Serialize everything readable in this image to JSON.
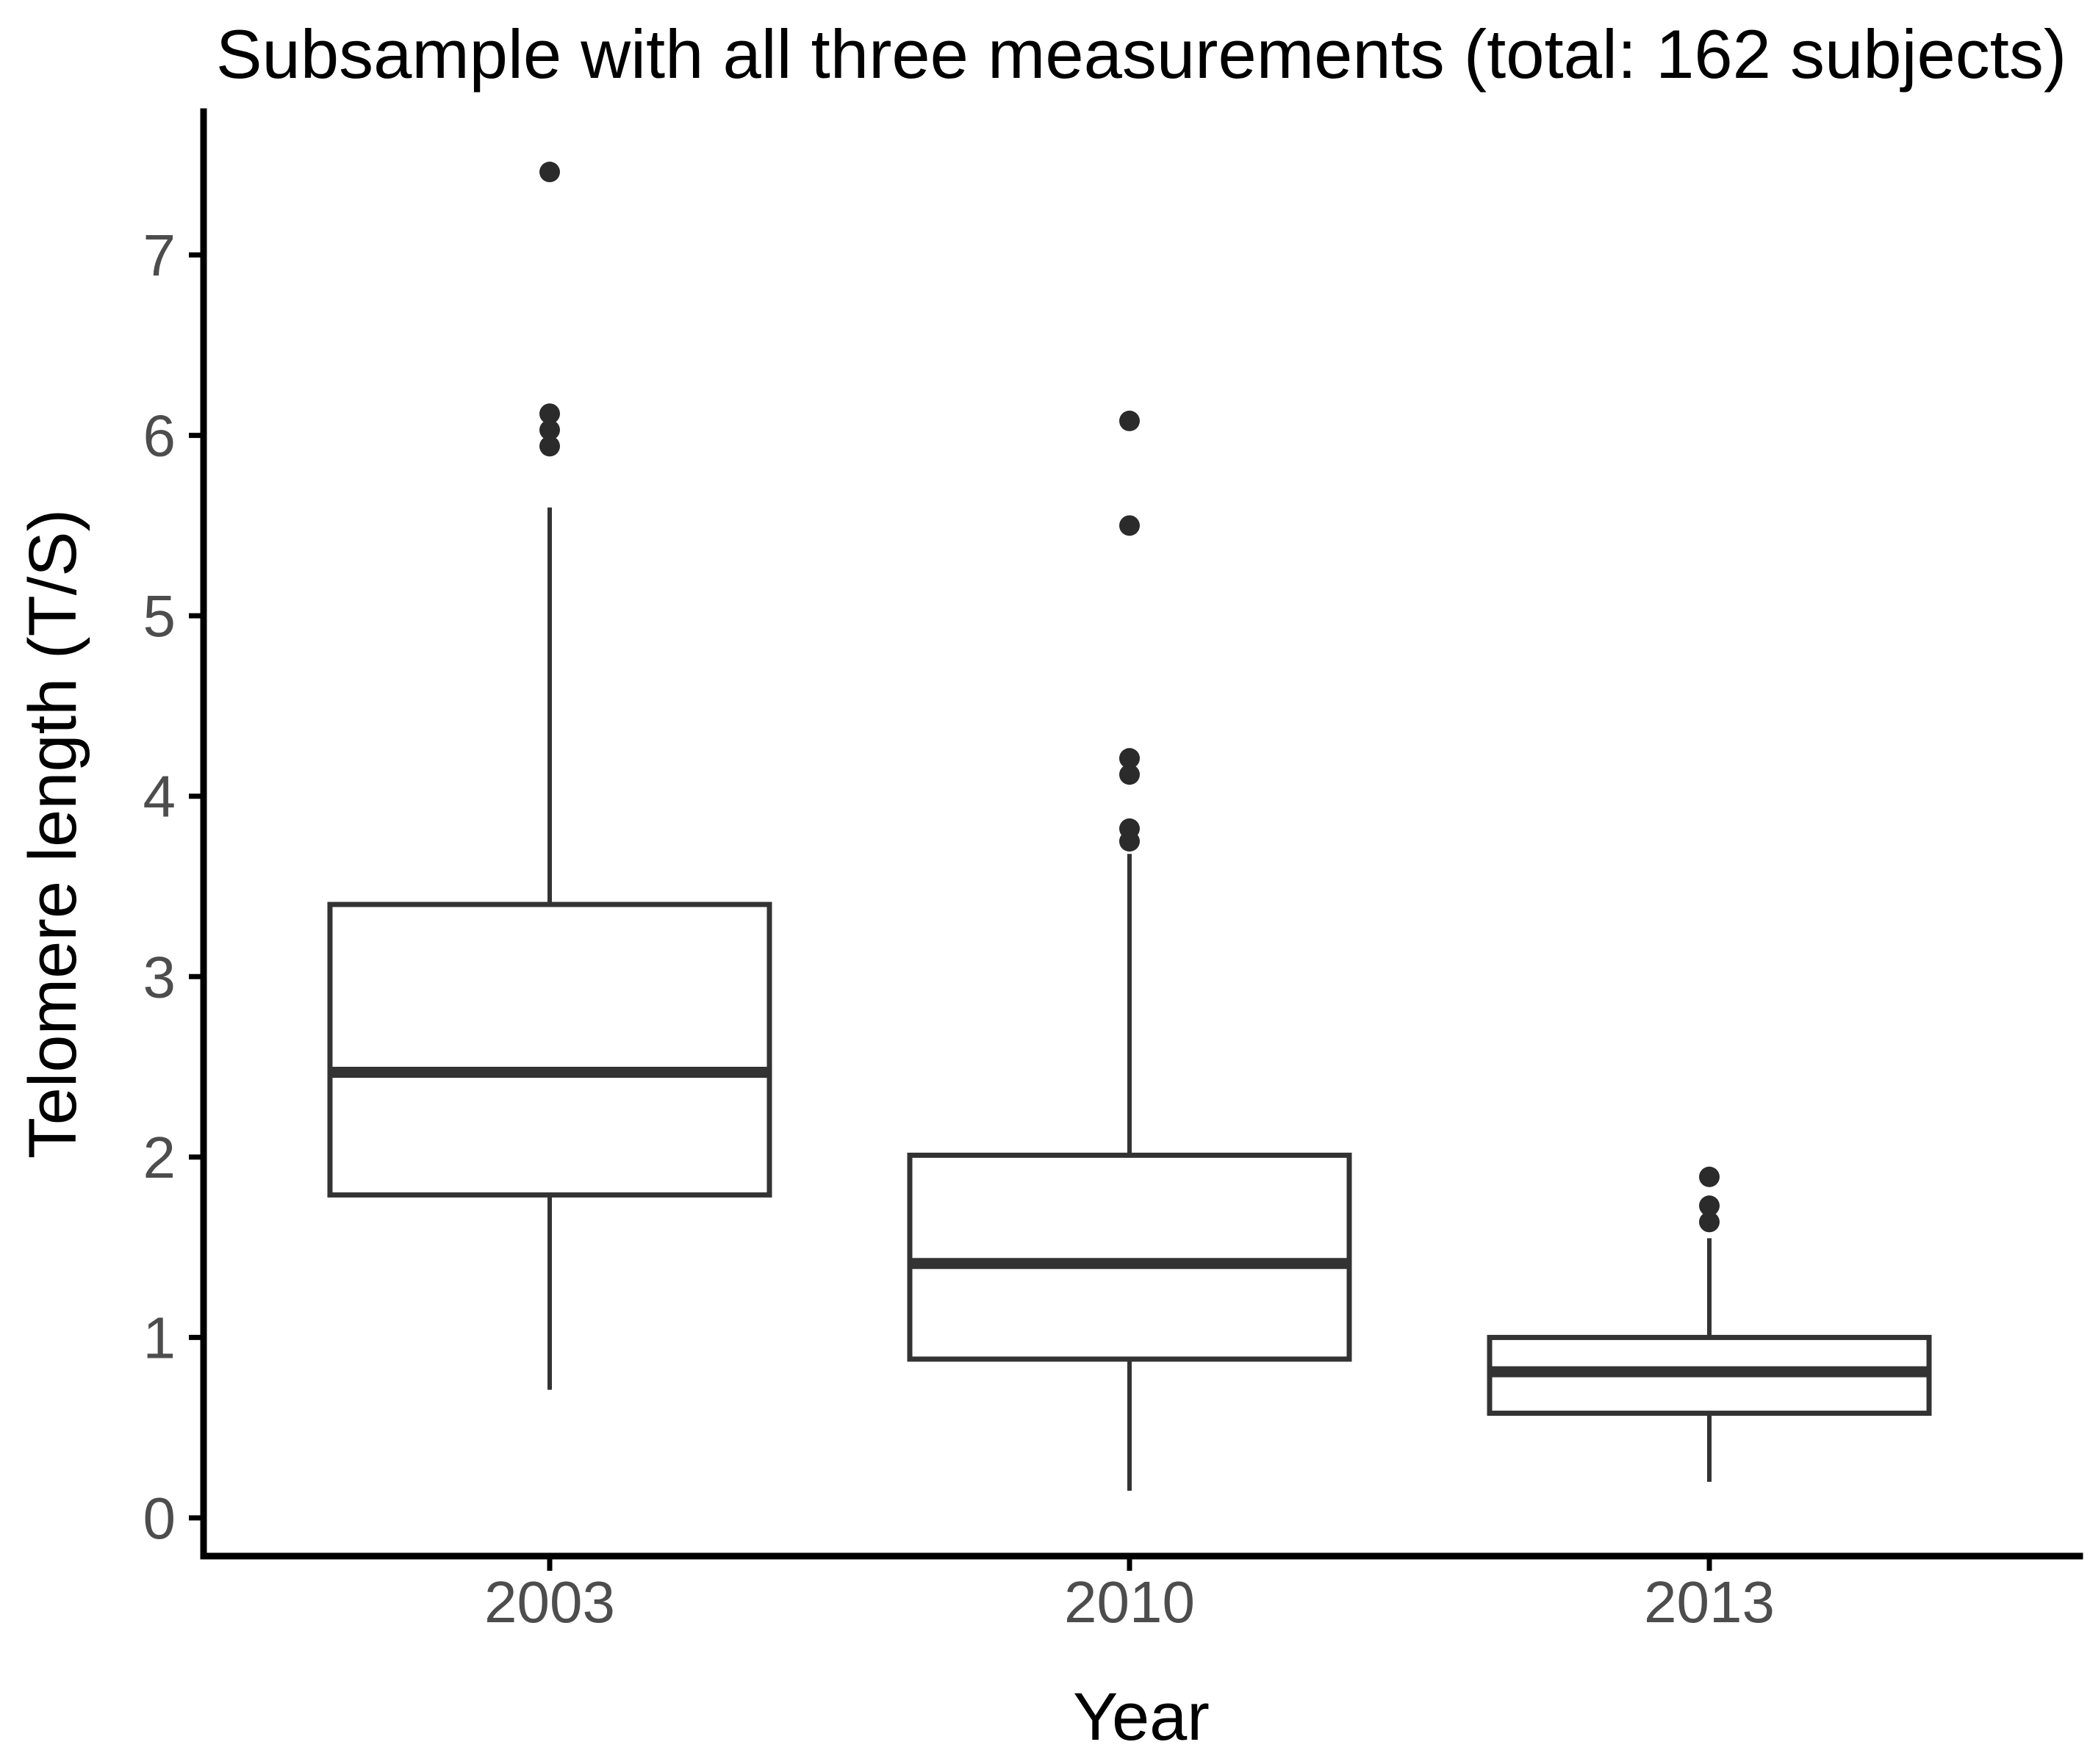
{
  "chart_data": {
    "type": "boxplot",
    "title": "Subsample with all three measurements (total: 162 subjects)",
    "xlabel": "Year",
    "ylabel": "Telomere length (T/S)",
    "categories": [
      "2003",
      "2010",
      "2013"
    ],
    "yticks": [
      0,
      1,
      2,
      3,
      4,
      5,
      6,
      7
    ],
    "ylim": [
      -0.2,
      7.8
    ],
    "grid": false,
    "legend": "none",
    "series": [
      {
        "category": "2003",
        "whisker_low": 0.71,
        "q1": 1.79,
        "median": 2.47,
        "q3": 3.4,
        "whisker_high": 5.6,
        "outliers": [
          5.94,
          6.03,
          6.12,
          7.46
        ]
      },
      {
        "category": "2010",
        "whisker_low": 0.15,
        "q1": 0.88,
        "median": 1.41,
        "q3": 2.01,
        "whisker_high": 3.68,
        "outliers": [
          3.75,
          3.82,
          4.12,
          4.21,
          5.5,
          6.08
        ]
      },
      {
        "category": "2013",
        "whisker_low": 0.2,
        "q1": 0.58,
        "median": 0.81,
        "q3": 1.0,
        "whisker_high": 1.55,
        "outliers": [
          1.64,
          1.73,
          1.89
        ]
      }
    ],
    "colors": {
      "background": "#ffffff",
      "axis_line": "#000000",
      "box_stroke": "#333333",
      "median_line": "#333333",
      "whisker": "#333333",
      "outlier_dot": "#2b2b2b",
      "tick_text": "#4d4d4d",
      "title_text": "#000000",
      "box_fill": "#ffffff"
    }
  }
}
